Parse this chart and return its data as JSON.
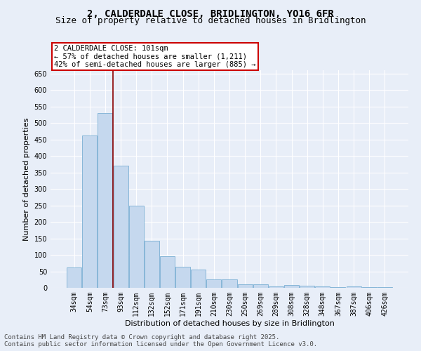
{
  "title": "2, CALDERDALE CLOSE, BRIDLINGTON, YO16 6FR",
  "subtitle": "Size of property relative to detached houses in Bridlington",
  "xlabel": "Distribution of detached houses by size in Bridlington",
  "ylabel": "Number of detached properties",
  "categories": [
    "34sqm",
    "54sqm",
    "73sqm",
    "93sqm",
    "112sqm",
    "132sqm",
    "152sqm",
    "171sqm",
    "191sqm",
    "210sqm",
    "230sqm",
    "250sqm",
    "269sqm",
    "289sqm",
    "308sqm",
    "328sqm",
    "348sqm",
    "367sqm",
    "387sqm",
    "406sqm",
    "426sqm"
  ],
  "values": [
    62,
    462,
    530,
    370,
    250,
    142,
    95,
    63,
    55,
    25,
    25,
    10,
    10,
    5,
    8,
    7,
    5,
    3,
    5,
    3,
    3
  ],
  "bar_color": "#c5d8ee",
  "bar_edge_color": "#7aafd4",
  "vline_after_index": 2,
  "vline_color": "#8b0000",
  "annotation_text": "2 CALDERDALE CLOSE: 101sqm\n← 57% of detached houses are smaller (1,211)\n42% of semi-detached houses are larger (885) →",
  "annotation_box_color": "white",
  "annotation_box_edge": "#cc0000",
  "ylim": [
    0,
    660
  ],
  "yticks": [
    0,
    50,
    100,
    150,
    200,
    250,
    300,
    350,
    400,
    450,
    500,
    550,
    600,
    650
  ],
  "background_color": "#e8eef8",
  "grid_color": "#ffffff",
  "footer": "Contains HM Land Registry data © Crown copyright and database right 2025.\nContains public sector information licensed under the Open Government Licence v3.0.",
  "title_fontsize": 10,
  "subtitle_fontsize": 9,
  "axis_label_fontsize": 8,
  "tick_fontsize": 7,
  "annotation_fontsize": 7.5,
  "footer_fontsize": 6.5
}
